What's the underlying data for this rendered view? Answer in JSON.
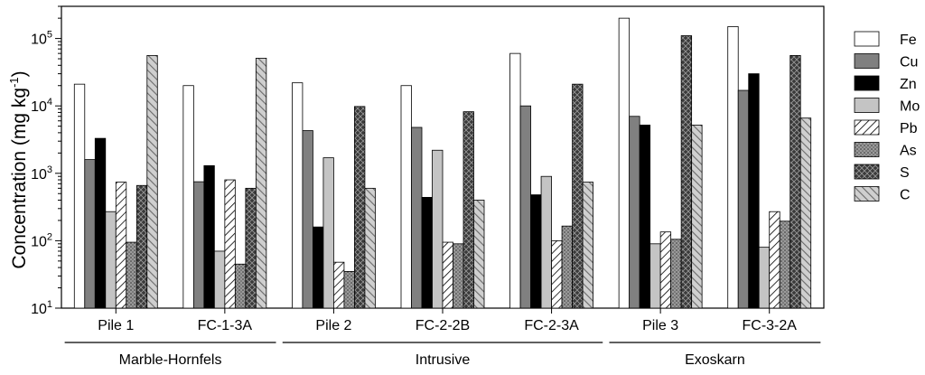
{
  "chart_data": {
    "type": "bar",
    "scale": "log",
    "ylim": [
      10,
      300000
    ],
    "ylabel": "Concentration (mg kg",
    "ylabel_sup": "-1",
    "ylabel_close": ")",
    "y_ticks": [
      {
        "value": 10,
        "base": "10",
        "exp": "1"
      },
      {
        "value": 100,
        "base": "10",
        "exp": "2"
      },
      {
        "value": 1000,
        "base": "10",
        "exp": "3"
      },
      {
        "value": 10000,
        "base": "10",
        "exp": "4"
      },
      {
        "value": 100000,
        "base": "10",
        "exp": "5"
      }
    ],
    "categories": [
      "Pile 1",
      "FC-1-3A",
      "Pile 2",
      "FC-2-2B",
      "FC-2-3A",
      "Pile 3",
      "FC-3-2A"
    ],
    "groups": [
      {
        "label": "Marble-Hornfels",
        "start": 0,
        "end": 1
      },
      {
        "label": "Intrusive",
        "start": 2,
        "end": 4
      },
      {
        "label": "Exoskarn",
        "start": 5,
        "end": 6
      }
    ],
    "series": [
      {
        "name": "Fe",
        "pattern": "white",
        "values": [
          21000,
          20000,
          22000,
          20000,
          60000,
          200000,
          150000
        ]
      },
      {
        "name": "Cu",
        "pattern": "gray",
        "values": [
          1600,
          750,
          4300,
          4800,
          10000,
          7000,
          17000
        ]
      },
      {
        "name": "Zn",
        "pattern": "black",
        "values": [
          3300,
          1300,
          160,
          440,
          480,
          5200,
          30000
        ]
      },
      {
        "name": "Mo",
        "pattern": "lightgray",
        "values": [
          270,
          70,
          1700,
          2200,
          900,
          90,
          80
        ]
      },
      {
        "name": "Pb",
        "pattern": "hatch",
        "values": [
          740,
          800,
          48,
          95,
          100,
          135,
          270
        ]
      },
      {
        "name": "As",
        "pattern": "dots",
        "values": [
          95,
          45,
          35,
          90,
          165,
          105,
          195
        ]
      },
      {
        "name": "S",
        "pattern": "crosshatch",
        "values": [
          660,
          600,
          9800,
          8200,
          21000,
          110000,
          56000
        ]
      },
      {
        "name": "C",
        "pattern": "diagonal",
        "values": [
          56000,
          51000,
          600,
          400,
          740,
          5200,
          6600
        ]
      }
    ],
    "legend_position": "right",
    "grid": false
  }
}
